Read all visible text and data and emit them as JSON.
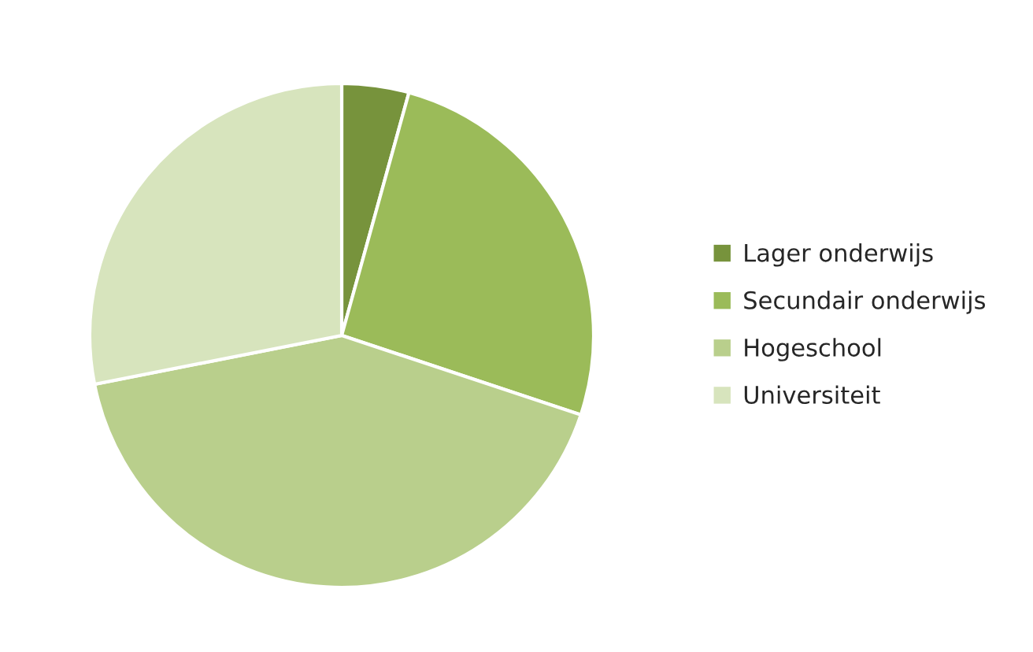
{
  "chart_data": {
    "type": "pie",
    "categories": [
      "Lager onderwijs",
      "Secundair onderwijs",
      "Hogeschool",
      "Universiteit"
    ],
    "values": [
      4.3,
      25.8,
      41.8,
      28.1
    ],
    "colors": [
      "#77933c",
      "#9bbb59",
      "#b9cf8c",
      "#d7e4bd"
    ],
    "legend": "right"
  }
}
